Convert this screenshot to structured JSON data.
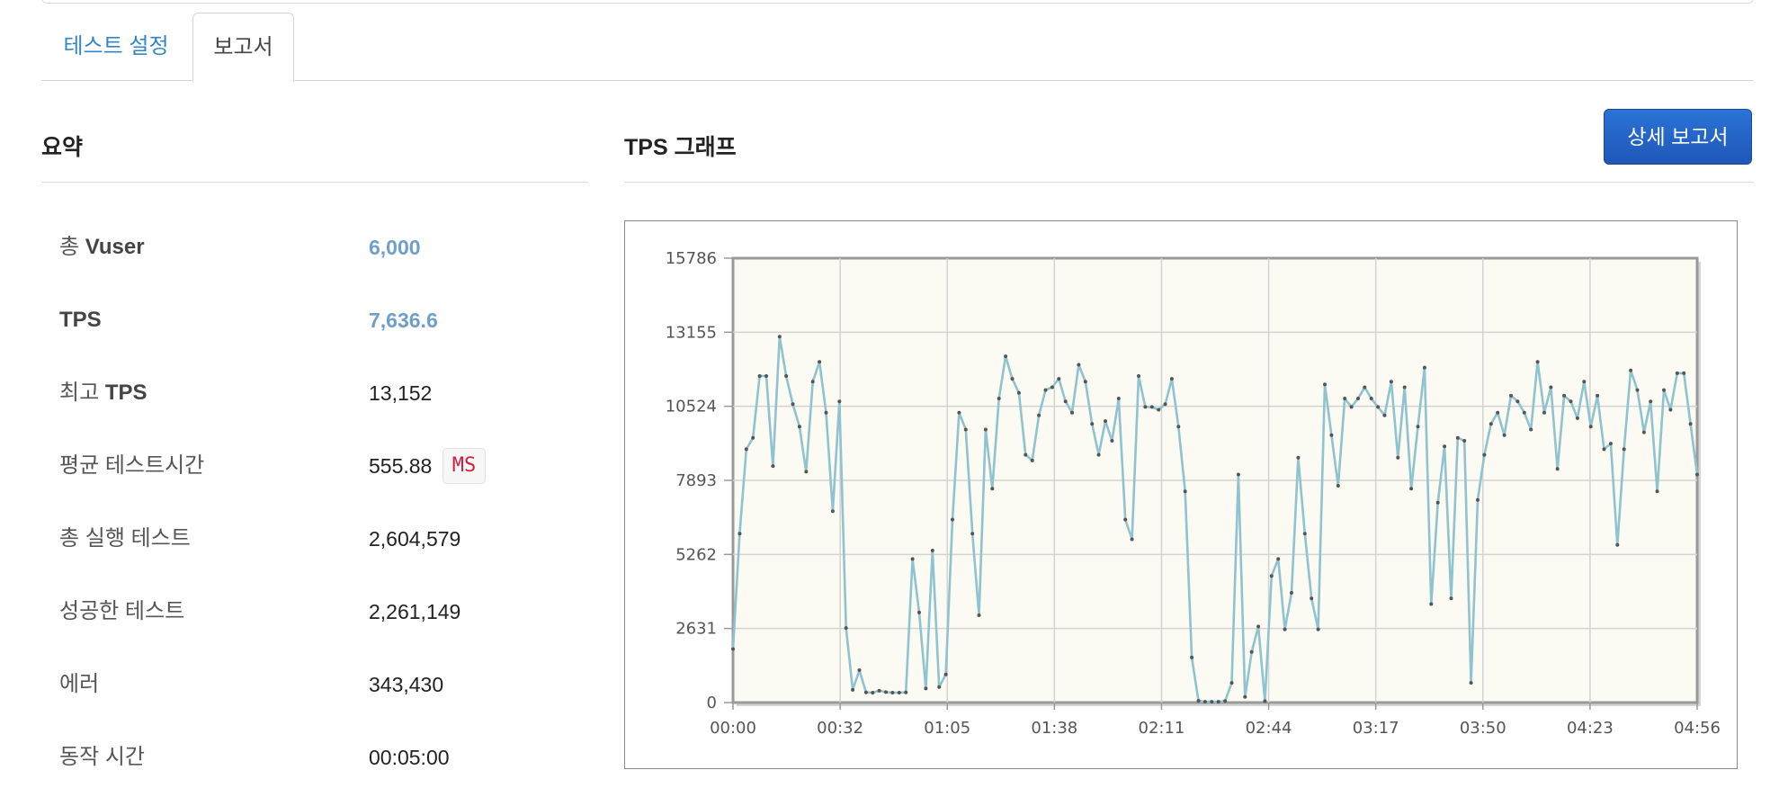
{
  "tabs": [
    {
      "label": "테스트 설정"
    },
    {
      "label": "보고서"
    }
  ],
  "summary": {
    "title": "요약",
    "rows": [
      {
        "label_prefix": "총 ",
        "label_bold": "Vuser",
        "value": "6,000"
      },
      {
        "label_prefix": "",
        "label_bold": "TPS",
        "value": "7,636.6"
      },
      {
        "label_prefix": "최고 ",
        "label_bold": "TPS",
        "value": "13,152"
      },
      {
        "label_prefix": "평균 테스트시간",
        "label_bold": "",
        "value": "555.88",
        "unit": "MS"
      },
      {
        "label_prefix": "총 실행 테스트",
        "label_bold": "",
        "value": "2,604,579"
      },
      {
        "label_prefix": "성공한 테스트",
        "label_bold": "",
        "value": "2,261,149"
      },
      {
        "label_prefix": "에러",
        "label_bold": "",
        "value": "343,430"
      },
      {
        "label_prefix": "동작 시간",
        "label_bold": "",
        "value": "00:05:00"
      }
    ]
  },
  "graph": {
    "title": "TPS 그래프",
    "detail_button": "상세 보고서"
  },
  "colors": {
    "tab_active_text": "#3385c6",
    "value_link": "#6f9fc8",
    "badge_text": "#d0203c",
    "button_bg": "#2366c8",
    "line": "#8fc3cf",
    "plot_bg": "#fbfaf3"
  },
  "chart_data": {
    "type": "line",
    "title": "",
    "xlabel": "",
    "ylabel": "",
    "x_tick_labels": [
      "00:00",
      "00:32",
      "01:05",
      "01:38",
      "02:11",
      "02:44",
      "03:17",
      "03:50",
      "04:23",
      "04:56"
    ],
    "y_tick_labels": [
      "0",
      "2631",
      "5262",
      "7893",
      "10524",
      "13155",
      "15786"
    ],
    "ylim": [
      0,
      15786
    ],
    "x_range_seconds": [
      0,
      296
    ],
    "grid": true,
    "series": [
      {
        "name": "",
        "values": [
          1900,
          6000,
          9000,
          9400,
          11600,
          11600,
          8400,
          13000,
          11600,
          10600,
          9800,
          8200,
          11400,
          12100,
          10300,
          6800,
          10700,
          2650,
          450,
          1150,
          360,
          350,
          420,
          370,
          350,
          350,
          360,
          5100,
          3200,
          500,
          5400,
          550,
          1000,
          6500,
          10300,
          9700,
          6000,
          3100,
          9700,
          7600,
          10800,
          12300,
          11500,
          11000,
          8800,
          8600,
          10200,
          11100,
          11200,
          11500,
          10700,
          10300,
          12000,
          11400,
          9900,
          8800,
          10000,
          9300,
          10800,
          6500,
          5800,
          11600,
          10500,
          10500,
          10400,
          10600,
          11500,
          9800,
          7500,
          1600,
          60,
          30,
          30,
          30,
          50,
          700,
          8100,
          200,
          1800,
          2700,
          50,
          4500,
          5100,
          2600,
          3900,
          8700,
          6000,
          3700,
          2600,
          11300,
          9500,
          7700,
          10800,
          10500,
          10800,
          11200,
          10800,
          10500,
          10200,
          11400,
          8700,
          11200,
          7600,
          9800,
          11900,
          3500,
          7100,
          9100,
          3700,
          9400,
          9300,
          700,
          7200,
          8800,
          9900,
          10300,
          9500,
          10900,
          10700,
          10300,
          9700,
          12100,
          10300,
          11200,
          8300,
          10900,
          10700,
          10100,
          11400,
          9800,
          10900,
          9000,
          9200,
          5600,
          9000,
          11800,
          11100,
          9600,
          10700,
          7500,
          11100,
          10400,
          11700,
          11700,
          9900,
          8100
        ]
      }
    ]
  }
}
